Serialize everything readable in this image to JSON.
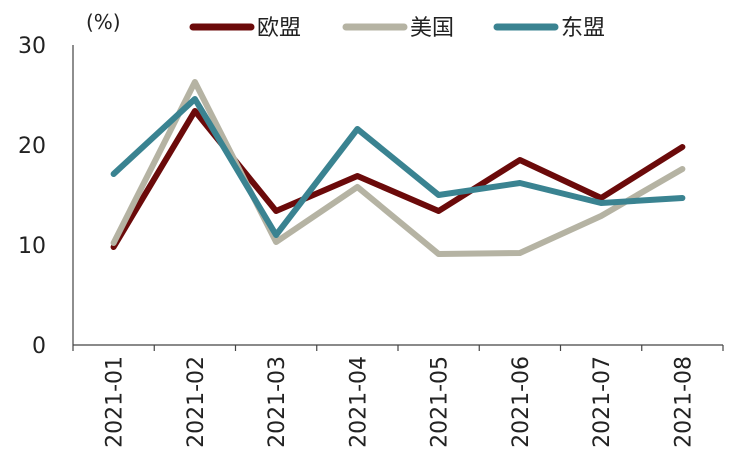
{
  "chart_data": {
    "type": "line",
    "unit_label": "(%)",
    "categories": [
      "2021-01",
      "2021-02",
      "2021-03",
      "2021-04",
      "2021-05",
      "2021-06",
      "2021-07",
      "2021-08"
    ],
    "ylim": [
      0,
      30
    ],
    "yticks": [
      "0",
      "10",
      "20",
      "30"
    ],
    "grid": false,
    "legend_position": "top",
    "series": [
      {
        "name": "欧盟",
        "color": "#6b0a0a",
        "values": [
          9.8,
          23.4,
          13.4,
          16.9,
          13.4,
          18.5,
          14.7,
          19.8
        ]
      },
      {
        "name": "美国",
        "color": "#b5b3a3",
        "values": [
          10.2,
          26.3,
          10.3,
          15.8,
          9.1,
          9.2,
          12.9,
          17.6
        ]
      },
      {
        "name": "东盟",
        "color": "#3a8391",
        "values": [
          17.1,
          24.6,
          11.0,
          21.6,
          15.0,
          16.2,
          14.2,
          14.7
        ]
      }
    ]
  }
}
